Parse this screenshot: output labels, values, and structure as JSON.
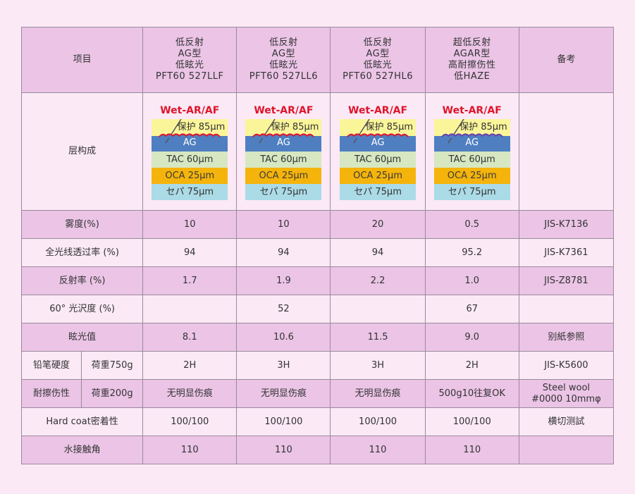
{
  "header": {
    "item": "项目",
    "remark": "备考",
    "products": [
      {
        "lines": [
          "低反射",
          "AG型",
          "低眩光",
          "PFT60 527LLF"
        ]
      },
      {
        "lines": [
          "低反射",
          "AG型",
          "低眩光",
          "PFT60 527LL6"
        ]
      },
      {
        "lines": [
          "低反射",
          "AG型",
          "低眩光",
          "PFT60 527HL6"
        ]
      },
      {
        "lines": [
          "超低反射",
          "AGAR型",
          "高耐擦伤性",
          "低HAZE"
        ]
      }
    ]
  },
  "structure": {
    "label": "层构成",
    "wet": "Wet-AR/AF",
    "protect": "保护 85μm",
    "ag": "AG",
    "tac": "TAC 60μm",
    "oca": "OCA 25μm",
    "sep": "セパ 75μm",
    "colors": {
      "wet": "#e0142a",
      "protect": "#fbf59a",
      "ag": "#4f7fc1",
      "tac": "#d7e7c2",
      "oca": "#f5b40b",
      "sep": "#abdbe6",
      "wave_red": "#e0142a",
      "wave_purple": "#6a3fa8"
    }
  },
  "rows": [
    {
      "label": "雾度(%)",
      "values": [
        "10",
        "10",
        "20",
        "0.5"
      ],
      "remark": "JIS-K7136"
    },
    {
      "label": "全光线透过率 (%)",
      "values": [
        "94",
        "94",
        "94",
        "95.2"
      ],
      "remark": "JIS-K7361"
    },
    {
      "label": "反射率 (%)",
      "values": [
        "1.7",
        "1.9",
        "2.2",
        "1.0"
      ],
      "remark": "JIS-Z8781"
    },
    {
      "label": "60° 光沢度 (%)",
      "values": [
        "",
        "52",
        "",
        "67"
      ],
      "remark": ""
    },
    {
      "label": "眩光值",
      "values": [
        "8.1",
        "10.6",
        "11.5",
        "9.0"
      ],
      "remark": "别紙参照"
    },
    {
      "label": "铅笔硬度",
      "sublabel": "荷重750g",
      "values": [
        "2H",
        "3H",
        "3H",
        "2H"
      ],
      "remark": "JIS-K5600"
    },
    {
      "label": "耐擦伤性",
      "sublabel": "荷重200g",
      "values": [
        "无明显伤痕",
        "无明显伤痕",
        "无明显伤痕",
        "500g10往复OK"
      ],
      "remark_lines": [
        "Steel wool",
        "#0000 10mmφ"
      ]
    },
    {
      "label": "Hard coat密着性",
      "values": [
        "100/100",
        "100/100",
        "100/100",
        "100/100"
      ],
      "remark": "横切测試"
    },
    {
      "label": "水接触角",
      "values": [
        "110",
        "110",
        "110",
        "110"
      ],
      "remark": ""
    }
  ]
}
